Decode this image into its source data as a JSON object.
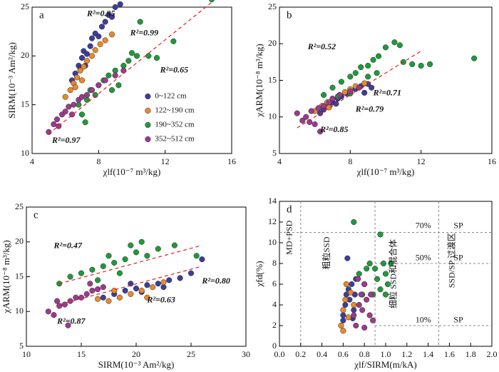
{
  "chart_data": [
    {
      "type": "scatter",
      "panel_label": "a",
      "xlabel": "χlf(10⁻⁷ m³/kg)",
      "ylabel": "SIRM(10⁻³ Am²/kg)",
      "xlim": [
        4,
        16
      ],
      "ylim": [
        10,
        25
      ],
      "xticks": [
        4,
        8,
        12,
        16
      ],
      "yticks": [
        10,
        15,
        20,
        25
      ],
      "legend": "lower right",
      "series": [
        {
          "name": "0~122 cm",
          "color": "#3d3d9c",
          "x": [
            6.4,
            6.6,
            6.8,
            7,
            7.1,
            7.3,
            7.5,
            7.6,
            7.8,
            8,
            8.2,
            8.4,
            8.6,
            8.8,
            9,
            9.3,
            7.2,
            6.9
          ],
          "values": [
            17.5,
            18.2,
            19,
            19.8,
            20.5,
            20.2,
            21,
            21.8,
            22.3,
            22,
            23,
            23.5,
            24.2,
            24,
            25,
            25.3,
            19,
            18.7
          ]
        },
        {
          "name": "122~190 cm",
          "color": "#e8892b",
          "x": [
            6,
            6.3,
            6.5,
            6.7,
            6.9,
            7.1,
            7.3,
            7.6,
            7.8,
            8.1,
            8.4,
            8.8,
            7,
            6.6
          ],
          "values": [
            15.8,
            16.5,
            17.2,
            17.8,
            18.5,
            18.9,
            19.5,
            20,
            20.6,
            21.2,
            21.6,
            22.2,
            17.5,
            16.8
          ]
        },
        {
          "name": "190~352 cm",
          "color": "#1f9a3a",
          "x": [
            6.8,
            7,
            7.3,
            7.5,
            7.8,
            8,
            8.3,
            8.6,
            9,
            9.2,
            9.5,
            9.8,
            10,
            10.3,
            10.5,
            11,
            11.5,
            12.5,
            14.8,
            7.2,
            8.8
          ],
          "values": [
            15,
            14,
            15.5,
            16.5,
            16,
            17,
            17.5,
            18,
            18.5,
            17,
            19,
            19.5,
            20.3,
            20,
            23.5,
            20,
            19.8,
            21.5,
            25.8,
            13.2,
            16.5
          ]
        },
        {
          "name": "352~512 cm",
          "color": "#9c3a8e",
          "x": [
            5,
            5.3,
            5.5,
            5.8,
            6,
            6.2,
            6.5,
            6.8,
            7,
            7.3,
            7.6,
            8,
            8.4,
            9,
            9.5,
            5.6,
            6.4
          ],
          "values": [
            12.2,
            13,
            13.5,
            14,
            14.3,
            14.8,
            15,
            15.5,
            15.8,
            16,
            16.5,
            17,
            17.5,
            18,
            18.5,
            12.8,
            14
          ]
        }
      ],
      "trendlines": [
        {
          "x": [
            5,
            14.8
          ],
          "y": [
            12,
            25.5
          ]
        }
      ],
      "annotations": [
        {
          "text": "R²=0.95",
          "color": "#3d3d9c"
        },
        {
          "text": "R²=0.99",
          "color": "#e8892b"
        },
        {
          "text": "R²=0.65",
          "color": "#1f9a3a"
        },
        {
          "text": "R²=0.97",
          "color": "#9c3a8e"
        }
      ]
    },
    {
      "type": "scatter",
      "panel_label": "b",
      "xlabel": "χlf(10⁻⁷ m³/kg)",
      "ylabel": "χARM(10⁻⁸ m³/kg)",
      "xlim": [
        4,
        16
      ],
      "ylim": [
        5,
        25
      ],
      "xticks": [
        4,
        8,
        12,
        16
      ],
      "yticks": [
        5,
        10,
        15,
        20,
        25
      ],
      "series": [
        {
          "color": "#3d3d9c",
          "x": [
            6.5,
            6.8,
            7,
            7.3,
            7.5,
            7.8,
            8,
            8.3,
            8.6,
            9,
            7.2,
            8.8,
            6.3,
            9.2
          ],
          "values": [
            11,
            11.5,
            12,
            12.5,
            12.8,
            13.2,
            13.5,
            13.8,
            14.2,
            14.5,
            11.8,
            13.3,
            10.5,
            14
          ]
        },
        {
          "color": "#e8892b",
          "x": [
            6,
            6.4,
            6.7,
            7,
            7.4,
            7.7,
            8,
            8.3,
            8.8,
            6.8
          ],
          "values": [
            10.8,
            11.5,
            12,
            12.5,
            13,
            13.4,
            13.8,
            14.2,
            14.6,
            11.3
          ]
        },
        {
          "color": "#1f9a3a",
          "x": [
            6.5,
            7,
            7.5,
            8,
            8.3,
            8.6,
            9,
            9.3,
            9.6,
            10,
            10.5,
            10.8,
            11,
            11.5,
            12,
            12.5,
            15,
            8,
            9,
            9.5,
            7.3
          ],
          "values": [
            13,
            14,
            14.8,
            15.5,
            16,
            16.8,
            17,
            17.8,
            18.3,
            19.5,
            20.2,
            19.8,
            17.5,
            17.2,
            17,
            17.2,
            18,
            13.2,
            15.5,
            16,
            12.8
          ]
        },
        {
          "color": "#9c3a8e",
          "x": [
            5,
            5.3,
            5.5,
            5.8,
            6,
            6.2,
            6.5,
            6.8,
            7,
            7.4,
            8,
            8.5,
            6.3,
            5.7
          ],
          "values": [
            10.5,
            9.5,
            10,
            10.8,
            9,
            11.2,
            11.5,
            12,
            12.5,
            13,
            13.5,
            14,
            8,
            9.3
          ]
        }
      ],
      "trendlines": [
        {
          "x": [
            5,
            12
          ],
          "y": [
            8.5,
            19
          ]
        }
      ],
      "annotations": [
        {
          "text": "R²=0.52",
          "color": "#1f9a3a"
        },
        {
          "text": "R²=0.71",
          "color": "#e8892b"
        },
        {
          "text": "R²=0.79",
          "color": "#3d3d9c"
        },
        {
          "text": "R²=0.85",
          "color": "#9c3a8e"
        }
      ]
    },
    {
      "type": "scatter",
      "panel_label": "c",
      "xlabel": "SIRM(10⁻³ Am²/kg)",
      "ylabel": "χARM(10⁻⁸ m³/kg)",
      "xlim": [
        10,
        30
      ],
      "ylim": [
        5,
        25
      ],
      "xticks": [
        10,
        15,
        20,
        25,
        30
      ],
      "yticks": [
        5,
        10,
        15,
        20,
        25
      ],
      "series": [
        {
          "color": "#3d3d9c",
          "x": [
            17,
            18,
            19,
            20,
            21,
            22,
            23,
            24,
            25,
            26,
            20.5,
            22.5,
            19.5
          ],
          "values": [
            12,
            12.5,
            13,
            13.3,
            13.8,
            14,
            14.5,
            14.8,
            15.5,
            17.5,
            12.8,
            13.5,
            14
          ]
        },
        {
          "color": "#e8892b",
          "x": [
            17.5,
            18.5,
            19.5,
            20.5,
            21.5,
            22.5,
            18,
            21,
            16.5
          ],
          "values": [
            11.5,
            12,
            12.5,
            13,
            13.5,
            14.2,
            13,
            12,
            11.8
          ]
        },
        {
          "color": "#1f9a3a",
          "x": [
            13,
            14,
            15,
            16,
            17,
            17.5,
            18,
            19,
            19.5,
            20,
            20.5,
            21,
            22,
            23.5,
            25.5,
            16.5,
            18.5
          ],
          "values": [
            14,
            15,
            15.5,
            16,
            16.5,
            18,
            17,
            17.5,
            19.5,
            18.5,
            20,
            18,
            19,
            19.5,
            18,
            14.5,
            15.5
          ]
        },
        {
          "color": "#9c3a8e",
          "x": [
            12,
            12.5,
            13,
            13.5,
            14,
            14.5,
            15,
            15.5,
            16,
            16.5,
            17,
            13.8,
            12.8,
            15.8
          ],
          "values": [
            10,
            9.5,
            10.8,
            11,
            11.5,
            12,
            12,
            12.5,
            13,
            13.2,
            13.5,
            8,
            11.5,
            14
          ]
        }
      ],
      "trendlines": [
        {
          "x": [
            13,
            26
          ],
          "y": [
            14,
            19.5
          ]
        },
        {
          "x": [
            13,
            26
          ],
          "y": [
            11,
            16.5
          ]
        }
      ],
      "annotations": [
        {
          "text": "R²=0.47",
          "color": "#1f9a3a"
        },
        {
          "text": "R²=0.80",
          "color": "#3d3d9c"
        },
        {
          "text": "R²=0.63",
          "color": "#e8892b"
        },
        {
          "text": "R²=0.87",
          "color": "#9c3a8e"
        }
      ]
    },
    {
      "type": "scatter",
      "panel_label": "d",
      "xlabel": "χlf/SIRM(m/kA)",
      "ylabel": "χfd(%)",
      "xlim": [
        0,
        2
      ],
      "ylim": [
        0,
        14
      ],
      "xticks": [
        {
          "value": 0,
          "label": "0.0"
        },
        {
          "value": 0.2,
          "label": "0.2"
        },
        {
          "value": 0.4,
          "label": "0.4"
        },
        {
          "value": 0.6,
          "label": "0.6"
        },
        {
          "value": 0.8,
          "label": "0.8"
        },
        {
          "value": 1,
          "label": "1.0"
        },
        {
          "value": 1.2,
          "label": "1.2"
        },
        {
          "value": 1.4,
          "label": "1.4"
        },
        {
          "value": 1.6,
          "label": "1.6"
        },
        {
          "value": 1.8,
          "label": "1.8"
        },
        {
          "value": 2,
          "label": "2.0"
        }
      ],
      "yticks": [
        0,
        2,
        4,
        6,
        8,
        10,
        12,
        14
      ],
      "series": [
        {
          "color": "#3d3d9c",
          "x": [
            0.6,
            0.62,
            0.63,
            0.65,
            0.66,
            0.68,
            0.7,
            0.71,
            0.72,
            0.64,
            0.6,
            0.69
          ],
          "values": [
            3,
            4,
            5,
            5.5,
            4.5,
            6,
            3.5,
            5,
            6.5,
            8.5,
            2.5,
            2.7
          ]
        },
        {
          "color": "#e8892b",
          "x": [
            0.58,
            0.6,
            0.62,
            0.63,
            0.65,
            0.67,
            0.7,
            0.6
          ],
          "values": [
            2,
            3.5,
            4.5,
            6,
            2.8,
            5.2,
            4,
            1.5
          ]
        },
        {
          "color": "#1f9a3a",
          "x": [
            0.7,
            0.75,
            0.8,
            0.85,
            0.9,
            0.92,
            0.95,
            0.98,
            1,
            1.02,
            0.88,
            0.95,
            1.05,
            0.82,
            0.78,
            1
          ],
          "values": [
            12,
            7,
            6,
            8,
            7.5,
            6.5,
            10.8,
            8,
            7,
            6,
            5,
            5.5,
            8,
            7.5,
            5,
            5
          ]
        },
        {
          "color": "#9c3a8e",
          "x": [
            0.7,
            0.72,
            0.75,
            0.77,
            0.78,
            0.8,
            0.82,
            0.85,
            0.88,
            0.8,
            0.74,
            0.86
          ],
          "values": [
            3,
            2,
            4,
            5,
            3.5,
            6,
            4.5,
            3,
            2.5,
            1.8,
            6.5,
            5
          ]
        }
      ],
      "reference_lines": {
        "x": [
          0.2,
          0.9,
          1.5
        ],
        "y": [
          2,
          8,
          11
        ]
      },
      "annotations": [
        {
          "text": "70%"
        },
        {
          "text": "SP"
        },
        {
          "text": "50%"
        },
        {
          "text": "SP"
        },
        {
          "text": "10%"
        },
        {
          "text": "SP"
        },
        {
          "text": "MD+PSD"
        },
        {
          "text": "粗粒SSD"
        },
        {
          "text": "细粒 SSD和混合体"
        },
        {
          "text": "SSD/SP 过渡区"
        }
      ]
    }
  ]
}
